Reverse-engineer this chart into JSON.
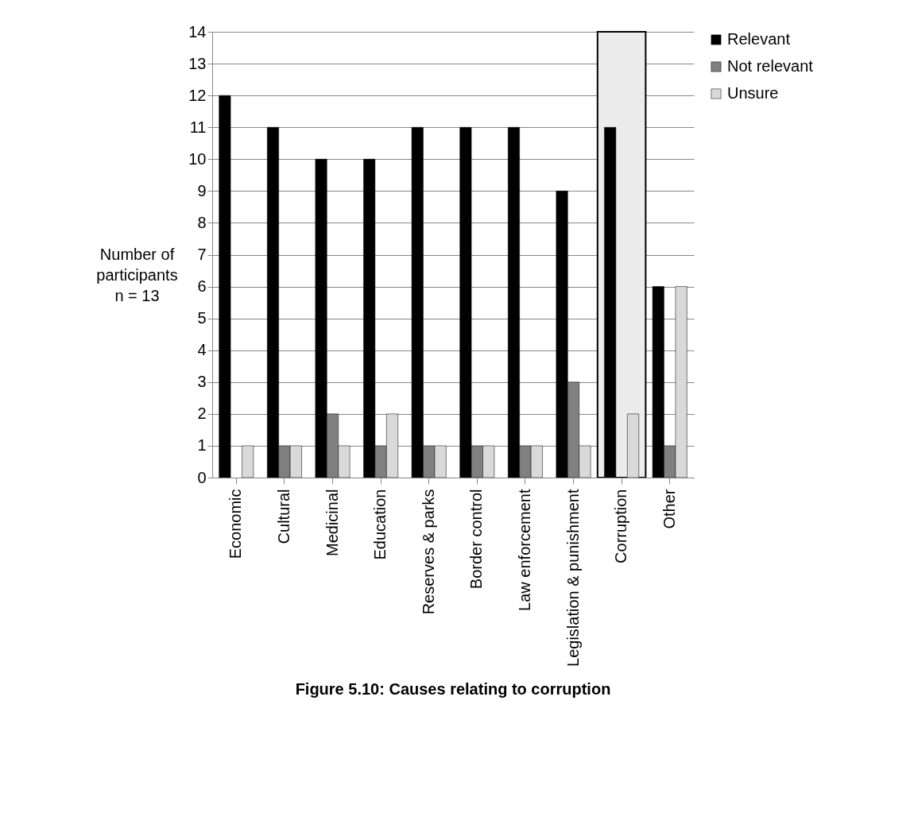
{
  "chart_data": {
    "type": "bar",
    "title": "Figure 5.10: Causes relating to corruption",
    "ylabel": "Number of\nparticipants\nn = 13",
    "categories": [
      "Economic",
      "Cultural",
      "Medicinal",
      "Education",
      "Reserves & parks",
      "Border control",
      "Law enforcement",
      "Legislation & punishment",
      "Corruption",
      "Other"
    ],
    "series": [
      {
        "name": "Relevant",
        "color": "#000000",
        "values": [
          12,
          11,
          10,
          10,
          11,
          11,
          11,
          9,
          11,
          6
        ]
      },
      {
        "name": "Not relevant",
        "color": "#808080",
        "values": [
          null,
          1,
          2,
          1,
          1,
          1,
          1,
          3,
          null,
          1
        ]
      },
      {
        "name": "Unsure",
        "color": "#d9d9d9",
        "values": [
          1,
          1,
          1,
          2,
          1,
          1,
          1,
          1,
          2,
          6
        ]
      }
    ],
    "ylim": [
      0,
      14
    ],
    "yticks": [
      0,
      1,
      2,
      3,
      4,
      5,
      6,
      7,
      8,
      9,
      10,
      11,
      12,
      13,
      14
    ],
    "grid": "y",
    "legend": "right",
    "bands": [
      {
        "axis": "x",
        "from": "Corruption",
        "to": "Corruption",
        "color": "#ececec"
      }
    ]
  }
}
